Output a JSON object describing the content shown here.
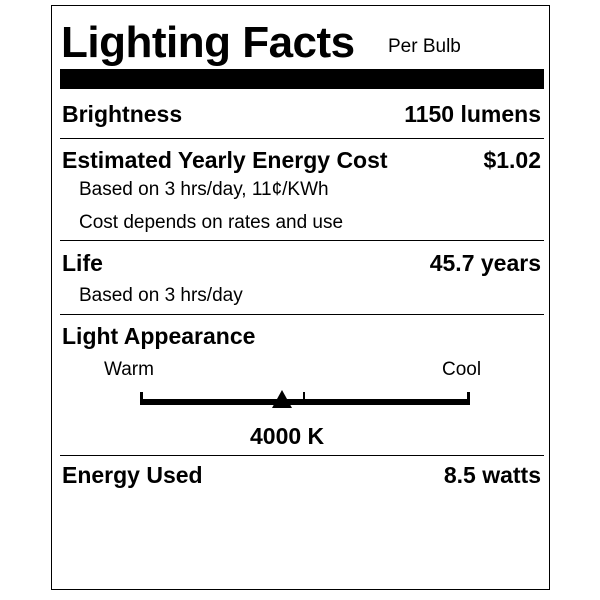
{
  "title": "Lighting Facts",
  "subtitle": "Per Bulb",
  "brightness": {
    "label": "Brightness",
    "value": "1150 lumens"
  },
  "cost": {
    "label": "Estimated Yearly Energy Cost",
    "value": "$1.02",
    "notes": [
      "Based on 3 hrs/day, 11¢/KWh",
      "Cost depends on rates and use"
    ]
  },
  "life": {
    "label": "Life",
    "value": "45.7 years",
    "note": "Based on 3 hrs/day"
  },
  "appearance": {
    "label": "Light Appearance",
    "warm": "Warm",
    "cool": "Cool",
    "value": "4000 K",
    "marker_position": 0.43
  },
  "energy": {
    "label": "Energy Used",
    "value": "8.5 watts"
  }
}
